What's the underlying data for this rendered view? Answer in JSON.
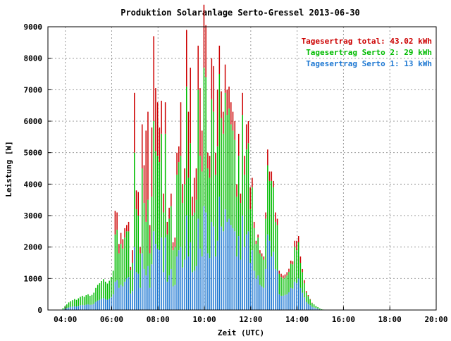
{
  "chart_data": {
    "type": "bar",
    "title": "Produktion Solaranlage Serto-Gressel 2013-06-30",
    "xlabel": "Zeit (UTC)",
    "ylabel": "Leistung [W]",
    "xlim": [
      3.25,
      20.0
    ],
    "ylim": [
      0,
      9000
    ],
    "x_ticks": [
      "04:00",
      "06:00",
      "08:00",
      "10:00",
      "12:00",
      "14:00",
      "16:00",
      "18:00",
      "20:00"
    ],
    "y_ticks": [
      "0",
      "1000",
      "2000",
      "3000",
      "4000",
      "5000",
      "6000",
      "7000",
      "8000",
      "9000"
    ],
    "grid": true,
    "legend_position": "top-right",
    "legend": [
      {
        "text": "Tagesertrag total: 43.02 kWh",
        "color": "#cc0000"
      },
      {
        "text": "Tagesertrag Serto 2: 29 kWh",
        "color": "#00bb00"
      },
      {
        "text": "Tagesertrag Serto 1: 13 kWh",
        "color": "#1e78d2"
      }
    ],
    "stacked": true,
    "x_start_hour": 3.9,
    "x_step_hours": 0.0833,
    "series": [
      {
        "name": "Serto 1",
        "color": "#1e78d2",
        "values": [
          20,
          40,
          60,
          80,
          100,
          110,
          120,
          110,
          130,
          150,
          160,
          150,
          170,
          180,
          160,
          170,
          200,
          260,
          300,
          320,
          360,
          380,
          340,
          320,
          360,
          400,
          500,
          900,
          950,
          700,
          800,
          750,
          900,
          1000,
          1050,
          520,
          600,
          2000,
          1200,
          1150,
          700,
          1800,
          1300,
          1100,
          1400,
          700,
          1450,
          2500,
          2100,
          1950,
          1900,
          2300,
          1200,
          2300,
          900,
          1100,
          1300,
          750,
          800,
          1700,
          1900,
          2000,
          1350,
          1600,
          3000,
          1700,
          2150,
          1200,
          1250,
          1400,
          2900,
          1950,
          1700,
          3300,
          3100,
          1800,
          1650,
          2800,
          2650,
          1700,
          2200,
          3600,
          2650,
          2500,
          3200,
          2800,
          2900,
          2700,
          2600,
          2500,
          1700,
          2350,
          1600,
          3000,
          2000,
          2400,
          2500,
          1500,
          1900,
          1250,
          1000,
          1100,
          800,
          750,
          700,
          1300,
          2400,
          2200,
          1700,
          1850,
          1300,
          1250,
          500,
          450,
          450,
          480,
          500,
          560,
          700,
          680,
          900,
          850,
          1000,
          700,
          550,
          400,
          250,
          200,
          150,
          100,
          80,
          60,
          40,
          20,
          10,
          5
        ]
      },
      {
        "name": "Serto 2",
        "color": "#00bb00",
        "values": [
          40,
          80,
          120,
          160,
          180,
          200,
          230,
          210,
          240,
          270,
          290,
          270,
          300,
          320,
          290,
          310,
          350,
          440,
          500,
          530,
          560,
          600,
          560,
          520,
          570,
          650,
          750,
          1500,
          1600,
          1100,
          1300,
          1200,
          1400,
          1500,
          1450,
          750,
          900,
          3000,
          2000,
          1850,
          1100,
          2700,
          2100,
          1700,
          2100,
          1100,
          2150,
          3500,
          2950,
          2950,
          2800,
          3300,
          1900,
          3300,
          1500,
          1800,
          2000,
          1150,
          1200,
          2600,
          2800,
          2900,
          2050,
          2400,
          4100,
          2500,
          3150,
          1800,
          1850,
          2100,
          4100,
          2950,
          2700,
          4400,
          4300,
          2700,
          2550,
          3900,
          3650,
          2600,
          3000,
          3900,
          3450,
          3100,
          3700,
          3400,
          3500,
          3200,
          3100,
          2900,
          1900,
          2550,
          1800,
          3200,
          2300,
          2700,
          2800,
          1700,
          2000,
          1350,
          1100,
          1200,
          1000,
          950,
          900,
          1600,
          2200,
          1900,
          2400,
          2050,
          1500,
          1450,
          650,
          600,
          550,
          550,
          600,
          650,
          770,
          770,
          1100,
          1050,
          1150,
          800,
          650,
          450,
          300,
          240,
          180,
          120,
          100,
          70,
          50,
          30,
          15,
          8
        ]
      },
      {
        "name": "Total",
        "color": "#cc0000",
        "values": [
          0,
          0,
          0,
          0,
          0,
          0,
          0,
          0,
          0,
          0,
          0,
          0,
          0,
          0,
          0,
          0,
          0,
          0,
          0,
          0,
          0,
          0,
          0,
          0,
          0,
          0,
          0,
          750,
          550,
          300,
          350,
          300,
          300,
          200,
          300,
          100,
          400,
          1900,
          600,
          750,
          200,
          1400,
          1200,
          2900,
          2800,
          900,
          2200,
          2700,
          2000,
          1700,
          1100,
          1050,
          600,
          1000,
          400,
          350,
          400,
          250,
          300,
          700,
          500,
          1700,
          600,
          500,
          1800,
          2100,
          2400,
          600,
          1100,
          1000,
          1400,
          2150,
          1300,
          2000,
          1650,
          500,
          700,
          1300,
          1450,
          700,
          1800,
          900,
          850,
          700,
          900,
          800,
          700,
          700,
          600,
          600,
          400,
          700,
          300,
          700,
          600,
          800,
          700,
          700,
          300,
          200,
          100,
          100,
          100,
          100,
          100,
          200,
          500,
          300,
          300,
          200,
          300,
          200,
          100,
          100,
          100,
          100,
          100,
          100,
          100,
          100,
          200,
          300,
          200,
          200,
          100,
          100,
          50,
          30,
          20,
          10,
          0,
          0,
          0,
          0,
          0,
          0
        ]
      }
    ]
  }
}
